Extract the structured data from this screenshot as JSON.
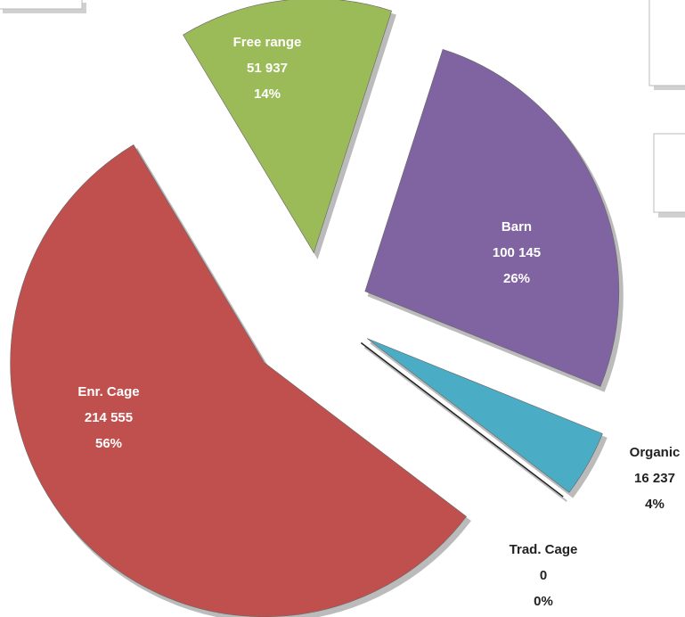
{
  "chart_data": {
    "type": "pie",
    "categories": [
      "Free range",
      "Barn",
      "Organic",
      "Trad. Cage",
      "Enr. Cage"
    ],
    "values": [
      51937,
      100145,
      16237,
      0,
      214555
    ],
    "value_labels": [
      "51 937",
      "100 145",
      "16 237",
      "0",
      "214 555"
    ],
    "percent_labels": [
      "14%",
      "26%",
      "4%",
      "0%",
      "56%"
    ],
    "colors": [
      "#9bbb59",
      "#8064a2",
      "#4bacc6",
      "#f79646",
      "#c0504d"
    ]
  }
}
